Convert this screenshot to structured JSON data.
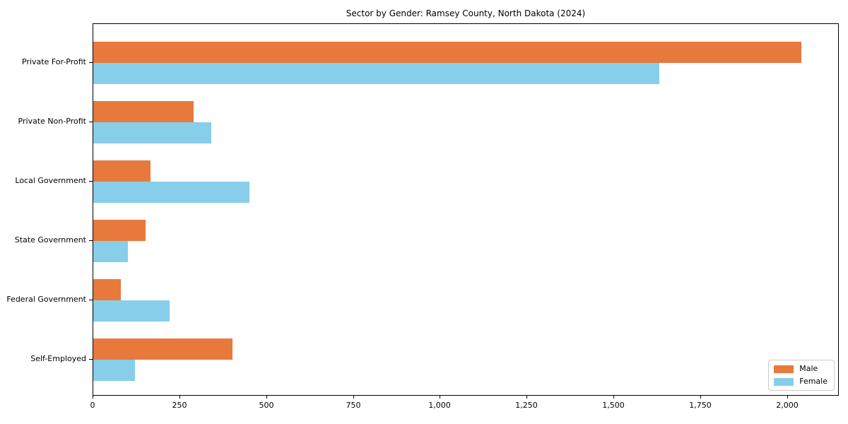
{
  "title": "Sector by Gender: Ramsey County, North Dakota (2024)",
  "chart_data": {
    "type": "bar",
    "orientation": "horizontal",
    "title": "Sector by Gender: Ramsey County, North Dakota (2024)",
    "categories": [
      "Private For-Profit",
      "Private Non-Profit",
      "Local Government",
      "State Government",
      "Federal Government",
      "Self-Employed"
    ],
    "series": [
      {
        "name": "Male",
        "color": "#e8793d",
        "values": [
          2040,
          290,
          165,
          150,
          80,
          400
        ]
      },
      {
        "name": "Female",
        "color": "#87ceeb",
        "values": [
          1630,
          340,
          450,
          100,
          220,
          120
        ]
      }
    ],
    "xlabel": "",
    "ylabel": "",
    "xlim": [
      0,
      2145
    ],
    "xticks": [
      0,
      250,
      500,
      750,
      1000,
      1250,
      1500,
      1750,
      2000
    ],
    "xtick_labels": [
      "0",
      "250",
      "500",
      "750",
      "1,000",
      "1,250",
      "1,500",
      "1,750",
      "2,000"
    ],
    "grid": false,
    "legend_position": "lower right"
  }
}
